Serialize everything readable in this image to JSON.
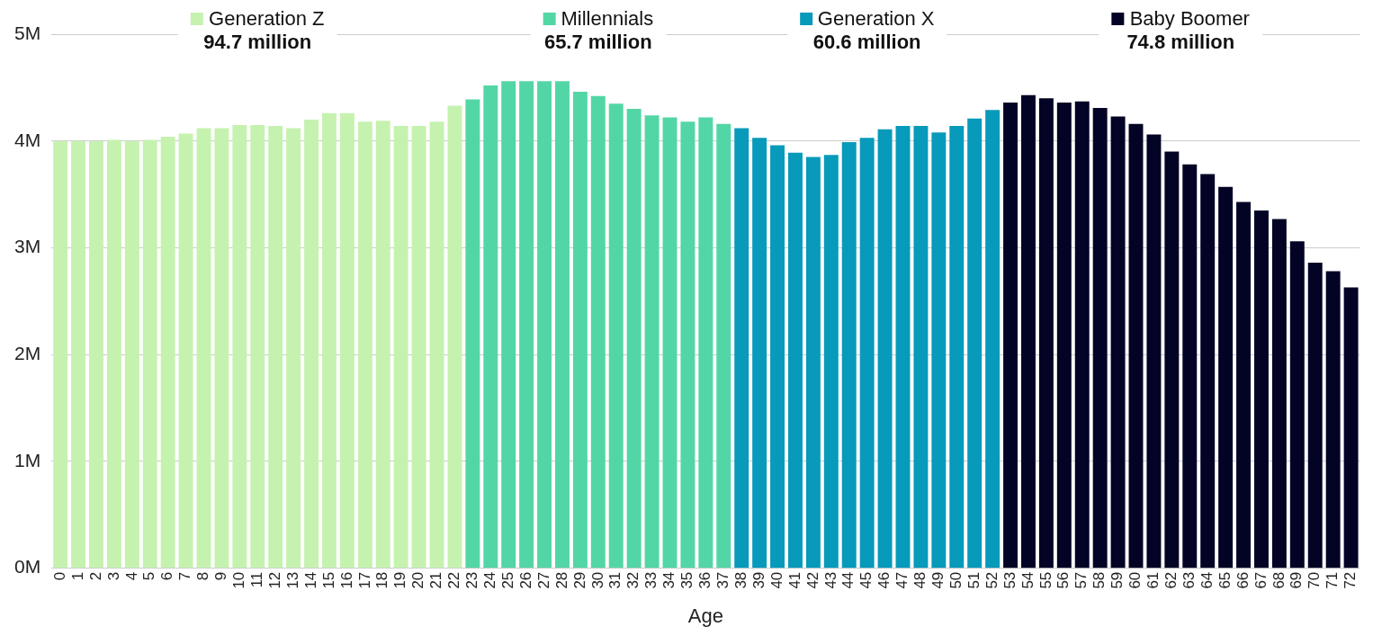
{
  "chart_data": {
    "type": "bar",
    "xlabel": "Age",
    "categories": [
      "0",
      "1",
      "2",
      "3",
      "4",
      "5",
      "6",
      "7",
      "8",
      "9",
      "10",
      "11",
      "12",
      "13",
      "14",
      "15",
      "16",
      "17",
      "18",
      "19",
      "20",
      "21",
      "22",
      "23",
      "24",
      "25",
      "26",
      "27",
      "28",
      "29",
      "30",
      "31",
      "32",
      "33",
      "34",
      "35",
      "36",
      "37",
      "38",
      "39",
      "40",
      "41",
      "42",
      "43",
      "44",
      "45",
      "46",
      "47",
      "48",
      "49",
      "50",
      "51",
      "52",
      "53",
      "54",
      "55",
      "56",
      "57",
      "58",
      "59",
      "60",
      "61",
      "62",
      "63",
      "64",
      "65",
      "66",
      "67",
      "68",
      "69",
      "70",
      "71",
      "72"
    ],
    "series": [
      {
        "name": "Generation Z",
        "color": "#c6f2b0",
        "values": [
          4.0,
          4.0,
          4.0,
          4.01,
          4.0,
          4.01,
          4.04,
          4.07,
          4.12,
          4.12,
          4.15,
          4.15,
          4.14,
          4.12,
          4.2,
          4.26,
          4.26,
          4.18,
          4.19,
          4.14,
          4.14,
          4.18,
          4.33,
          null,
          null,
          null,
          null,
          null,
          null,
          null,
          null,
          null,
          null,
          null,
          null,
          null,
          null,
          null,
          null,
          null,
          null,
          null,
          null,
          null,
          null,
          null,
          null,
          null,
          null,
          null,
          null,
          null,
          null,
          null,
          null,
          null,
          null,
          null,
          null,
          null,
          null,
          null,
          null,
          null,
          null,
          null,
          null,
          null,
          null,
          null,
          null,
          null,
          null
        ]
      },
      {
        "name": "Millennials",
        "color": "#53d6a5",
        "values": [
          null,
          null,
          null,
          null,
          null,
          null,
          null,
          null,
          null,
          null,
          null,
          null,
          null,
          null,
          null,
          null,
          null,
          null,
          null,
          null,
          null,
          null,
          null,
          4.39,
          4.52,
          4.56,
          4.56,
          4.56,
          4.56,
          4.46,
          4.42,
          4.35,
          4.3,
          4.24,
          4.22,
          4.18,
          4.22,
          4.16,
          null,
          null,
          null,
          null,
          null,
          null,
          null,
          null,
          null,
          null,
          null,
          null,
          null,
          null,
          null,
          null,
          null,
          null,
          null,
          null,
          null,
          null,
          null,
          null,
          null,
          null,
          null,
          null,
          null,
          null,
          null,
          null,
          null,
          null,
          null
        ]
      },
      {
        "name": "Generation X",
        "color": "#079aba",
        "values": [
          null,
          null,
          null,
          null,
          null,
          null,
          null,
          null,
          null,
          null,
          null,
          null,
          null,
          null,
          null,
          null,
          null,
          null,
          null,
          null,
          null,
          null,
          null,
          null,
          null,
          null,
          null,
          null,
          null,
          null,
          null,
          null,
          null,
          null,
          null,
          null,
          null,
          null,
          4.12,
          4.03,
          3.96,
          3.89,
          3.85,
          3.87,
          3.99,
          4.03,
          4.11,
          4.14,
          4.14,
          4.08,
          4.14,
          4.21,
          4.29,
          null,
          null,
          null,
          null,
          null,
          null,
          null,
          null,
          null,
          null,
          null,
          null,
          null,
          null,
          null,
          null,
          null,
          null,
          null,
          null
        ]
      },
      {
        "name": "Baby Boomer",
        "color": "#020325",
        "values": [
          null,
          null,
          null,
          null,
          null,
          null,
          null,
          null,
          null,
          null,
          null,
          null,
          null,
          null,
          null,
          null,
          null,
          null,
          null,
          null,
          null,
          null,
          null,
          null,
          null,
          null,
          null,
          null,
          null,
          null,
          null,
          null,
          null,
          null,
          null,
          null,
          null,
          null,
          null,
          null,
          null,
          null,
          null,
          null,
          null,
          null,
          null,
          null,
          null,
          null,
          null,
          null,
          null,
          4.36,
          4.43,
          4.4,
          4.36,
          4.37,
          4.31,
          4.23,
          4.16,
          4.06,
          3.9,
          3.78,
          3.69,
          3.57,
          3.43,
          3.35,
          3.27,
          3.06,
          2.86,
          2.78,
          2.63
        ]
      }
    ],
    "annotations": [
      "94.7 million",
      "65.7 million",
      "60.6 million",
      "74.8 million"
    ],
    "ylim": [
      0,
      5
    ],
    "yticks": [
      {
        "value": 0,
        "label": "0M"
      },
      {
        "value": 1,
        "label": "1M"
      },
      {
        "value": 2,
        "label": "2M"
      },
      {
        "value": 3,
        "label": "3M"
      },
      {
        "value": 4,
        "label": "4M"
      },
      {
        "value": 5,
        "label": "5M"
      }
    ],
    "grid": "y",
    "legend": "top"
  }
}
